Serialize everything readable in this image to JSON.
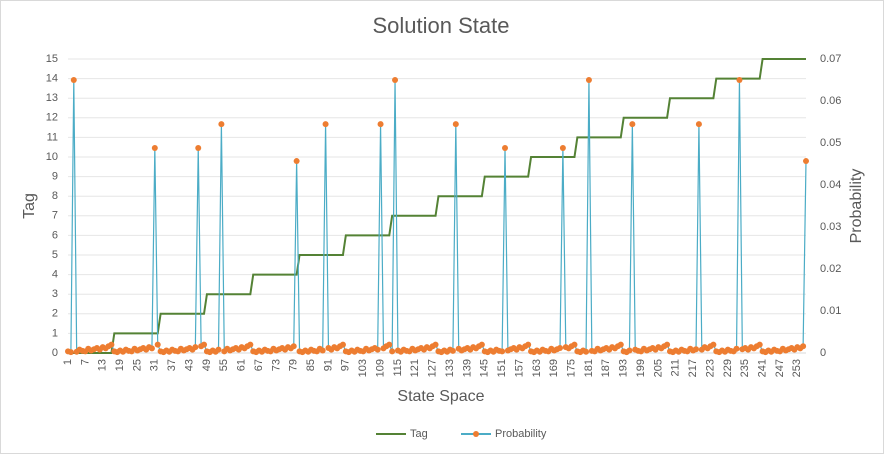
{
  "chart_data": {
    "type": "line",
    "title": "Solution State",
    "x_label": "State Space",
    "y_label": "Tag",
    "y2_label": "Probability",
    "ylim": [
      0,
      15
    ],
    "yticks": [
      0,
      1,
      2,
      3,
      4,
      5,
      6,
      7,
      8,
      9,
      10,
      11,
      12,
      13,
      14,
      15
    ],
    "y2lim": [
      0,
      0.07
    ],
    "y2ticks": [
      0,
      0.01,
      0.02,
      0.03,
      0.04,
      0.05,
      0.06,
      0.07
    ],
    "grid": true,
    "legend": "bottom",
    "categories": [
      1,
      null,
      null,
      null,
      null,
      null,
      7,
      null,
      null,
      null,
      null,
      null,
      13,
      null,
      null,
      null,
      null,
      null,
      19,
      null,
      null,
      null,
      null,
      null,
      25,
      null,
      null,
      null,
      null,
      null,
      31,
      null,
      null,
      null,
      null,
      null,
      37,
      null,
      null,
      null,
      null,
      null,
      43,
      null,
      null,
      null,
      null,
      null,
      49,
      null,
      null,
      null,
      null,
      null,
      55,
      null,
      null,
      null,
      null,
      null,
      61,
      null,
      null,
      null,
      null,
      null,
      67,
      null,
      null,
      null,
      null,
      null,
      73,
      null,
      null,
      null,
      null,
      null,
      79,
      null,
      null,
      null,
      null,
      null,
      85,
      null,
      null,
      null,
      null,
      null,
      91,
      null,
      null,
      null,
      null,
      null,
      97,
      null,
      null,
      null,
      null,
      null,
      103,
      null,
      null,
      null,
      null,
      null,
      109,
      null,
      null,
      null,
      null,
      null,
      115,
      null,
      null,
      null,
      null,
      null,
      121,
      null,
      null,
      null,
      null,
      null,
      127,
      null,
      null,
      null,
      null,
      null,
      133,
      null,
      null,
      null,
      null,
      null,
      139,
      null,
      null,
      null,
      null,
      null,
      145,
      null,
      null,
      null,
      null,
      null,
      151,
      null,
      null,
      null,
      null,
      null,
      157,
      null,
      null,
      null,
      null,
      null,
      163,
      null,
      null,
      null,
      null,
      null,
      169,
      null,
      null,
      null,
      null,
      null,
      175,
      null,
      null,
      null,
      null,
      null,
      181,
      null,
      null,
      null,
      null,
      null,
      187,
      null,
      null,
      null,
      null,
      null,
      193,
      null,
      null,
      null,
      null,
      null,
      199,
      null,
      null,
      null,
      null,
      null,
      205,
      null,
      null,
      null,
      null,
      null,
      211,
      null,
      null,
      null,
      null,
      null,
      217,
      null,
      null,
      null,
      null,
      null,
      223,
      null,
      null,
      null,
      null,
      null,
      229,
      null,
      null,
      null,
      null,
      null,
      235,
      null,
      null,
      null,
      null,
      null,
      241,
      null,
      null,
      null,
      null,
      null,
      247,
      null,
      null,
      null,
      null,
      null,
      253,
      null,
      null,
      null
    ],
    "series": [
      {
        "name": "Tag",
        "color": "#548235",
        "values": [
          0,
          0,
          0,
          0,
          0,
          0,
          0,
          0,
          0,
          0,
          0,
          0,
          0,
          0,
          0,
          0,
          1,
          1,
          1,
          1,
          1,
          1,
          1,
          1,
          1,
          1,
          1,
          1,
          1,
          1,
          1,
          1,
          2,
          2,
          2,
          2,
          2,
          2,
          2,
          2,
          2,
          2,
          2,
          2,
          2,
          2,
          2,
          2,
          3,
          3,
          3,
          3,
          3,
          3,
          3,
          3,
          3,
          3,
          3,
          3,
          3,
          3,
          3,
          3,
          4,
          4,
          4,
          4,
          4,
          4,
          4,
          4,
          4,
          4,
          4,
          4,
          4,
          4,
          4,
          4,
          5,
          5,
          5,
          5,
          5,
          5,
          5,
          5,
          5,
          5,
          5,
          5,
          5,
          5,
          5,
          5,
          6,
          6,
          6,
          6,
          6,
          6,
          6,
          6,
          6,
          6,
          6,
          6,
          6,
          6,
          6,
          6,
          7,
          7,
          7,
          7,
          7,
          7,
          7,
          7,
          7,
          7,
          7,
          7,
          7,
          7,
          7,
          7,
          8,
          8,
          8,
          8,
          8,
          8,
          8,
          8,
          8,
          8,
          8,
          8,
          8,
          8,
          8,
          8,
          9,
          9,
          9,
          9,
          9,
          9,
          9,
          9,
          9,
          9,
          9,
          9,
          9,
          9,
          9,
          9,
          10,
          10,
          10,
          10,
          10,
          10,
          10,
          10,
          10,
          10,
          10,
          10,
          10,
          10,
          10,
          10,
          11,
          11,
          11,
          11,
          11,
          11,
          11,
          11,
          11,
          11,
          11,
          11,
          11,
          11,
          11,
          11,
          12,
          12,
          12,
          12,
          12,
          12,
          12,
          12,
          12,
          12,
          12,
          12,
          12,
          12,
          12,
          12,
          13,
          13,
          13,
          13,
          13,
          13,
          13,
          13,
          13,
          13,
          13,
          13,
          13,
          13,
          13,
          13,
          14,
          14,
          14,
          14,
          14,
          14,
          14,
          14,
          14,
          14,
          14,
          14,
          14,
          14,
          14,
          14,
          15,
          15,
          15,
          15,
          15,
          15,
          15,
          15,
          15,
          15,
          15,
          15,
          15,
          15,
          15,
          15
        ]
      },
      {
        "name": "Probability",
        "color": "#4bacc6",
        "marker_color": "#ed7d31",
        "axis": "y2",
        "values": [
          0.0004,
          0.0002,
          0.065,
          0.0003,
          0.0008,
          0.0005,
          0.0004,
          0.001,
          0.0006,
          0.0009,
          0.0012,
          0.0008,
          0.0014,
          0.0011,
          0.0016,
          0.002,
          0.0004,
          0.0002,
          0.0006,
          0.0003,
          0.0008,
          0.0005,
          0.0004,
          0.001,
          0.0006,
          0.0009,
          0.0012,
          0.0008,
          0.0014,
          0.0011,
          0.0488,
          0.002,
          0.0004,
          0.0002,
          0.0006,
          0.0003,
          0.0008,
          0.0005,
          0.0004,
          0.001,
          0.0006,
          0.0009,
          0.0012,
          0.0008,
          0.0014,
          0.0488,
          0.0016,
          0.002,
          0.0004,
          0.0002,
          0.0006,
          0.0003,
          0.0008,
          0.0545,
          0.0004,
          0.001,
          0.0006,
          0.0009,
          0.0012,
          0.0008,
          0.0014,
          0.0011,
          0.0016,
          0.002,
          0.0004,
          0.0002,
          0.0006,
          0.0003,
          0.0008,
          0.0005,
          0.0004,
          0.001,
          0.0006,
          0.0009,
          0.0012,
          0.0008,
          0.0014,
          0.0011,
          0.0016,
          0.0457,
          0.0004,
          0.0002,
          0.0006,
          0.0003,
          0.0008,
          0.0005,
          0.0004,
          0.001,
          0.0006,
          0.0545,
          0.0012,
          0.0008,
          0.0014,
          0.0011,
          0.0016,
          0.002,
          0.0004,
          0.0002,
          0.0006,
          0.0003,
          0.0008,
          0.0005,
          0.0004,
          0.001,
          0.0006,
          0.0009,
          0.0012,
          0.0008,
          0.0545,
          0.0011,
          0.0016,
          0.002,
          0.0004,
          0.065,
          0.0006,
          0.0003,
          0.0008,
          0.0005,
          0.0004,
          0.001,
          0.0006,
          0.0009,
          0.0012,
          0.0008,
          0.0014,
          0.0011,
          0.0016,
          0.002,
          0.0004,
          0.0002,
          0.0006,
          0.0003,
          0.0008,
          0.0005,
          0.0545,
          0.001,
          0.0006,
          0.0009,
          0.0012,
          0.0008,
          0.0014,
          0.0011,
          0.0016,
          0.002,
          0.0004,
          0.0002,
          0.0006,
          0.0003,
          0.0008,
          0.0005,
          0.0004,
          0.0488,
          0.0006,
          0.0009,
          0.0012,
          0.0008,
          0.0014,
          0.0011,
          0.0016,
          0.002,
          0.0004,
          0.0002,
          0.0006,
          0.0003,
          0.0008,
          0.0005,
          0.0004,
          0.001,
          0.0006,
          0.0009,
          0.0012,
          0.0488,
          0.0014,
          0.0011,
          0.0016,
          0.002,
          0.0004,
          0.0002,
          0.0006,
          0.0003,
          0.065,
          0.0005,
          0.0004,
          0.001,
          0.0006,
          0.0009,
          0.0012,
          0.0008,
          0.0014,
          0.0011,
          0.0016,
          0.002,
          0.0004,
          0.0002,
          0.0006,
          0.0545,
          0.0008,
          0.0005,
          0.0004,
          0.001,
          0.0006,
          0.0009,
          0.0012,
          0.0008,
          0.0014,
          0.0011,
          0.0016,
          0.002,
          0.0004,
          0.0002,
          0.0006,
          0.0003,
          0.0008,
          0.0005,
          0.0004,
          0.001,
          0.0006,
          0.0009,
          0.0545,
          0.0008,
          0.0014,
          0.0011,
          0.0016,
          0.002,
          0.0004,
          0.0002,
          0.0006,
          0.0003,
          0.0008,
          0.0005,
          0.0004,
          0.001,
          0.065,
          0.0009,
          0.0012,
          0.0008,
          0.0014,
          0.0011,
          0.0016,
          0.002,
          0.0004,
          0.0002,
          0.0006,
          0.0003,
          0.0008,
          0.0005,
          0.0004,
          0.001,
          0.0006,
          0.0009,
          0.0012,
          0.0008,
          0.0014,
          0.0011,
          0.0016,
          0.0457
        ]
      }
    ]
  }
}
